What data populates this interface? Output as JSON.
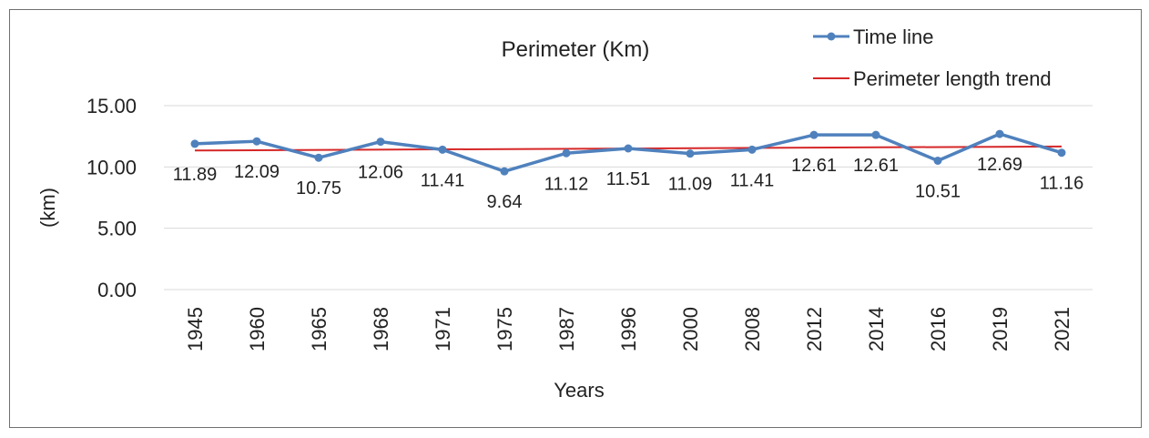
{
  "chart_data": {
    "type": "line",
    "title": "Perimeter (Km)",
    "xlabel": "Years",
    "ylabel": "(km)",
    "categories": [
      "1945",
      "1960",
      "1965",
      "1968",
      "1971",
      "1975",
      "1987",
      "1996",
      "2000",
      "2008",
      "2012",
      "2014",
      "2016",
      "2019",
      "2021"
    ],
    "series": [
      {
        "name": "Time line",
        "color": "#4f81bd",
        "values": [
          11.89,
          12.09,
          10.75,
          12.06,
          11.41,
          9.64,
          11.12,
          11.51,
          11.09,
          11.41,
          12.61,
          12.61,
          10.51,
          12.69,
          11.16
        ],
        "labels": [
          "11.89",
          "12.09",
          "10.75",
          "12.06",
          "11.41",
          "9.64",
          "11.12",
          "11.51",
          "11.09",
          "11.41",
          "12.61",
          "12.61",
          "10.51",
          "12.69",
          "11.16"
        ]
      },
      {
        "name": "Perimeter length trend",
        "color": "#d62728",
        "type": "linear-trend"
      }
    ],
    "ylim": [
      0,
      15
    ],
    "yticks": [
      "0.00",
      "5.00",
      "10.00",
      "15.00"
    ],
    "ytick_values": [
      0,
      5,
      10,
      15
    ],
    "grid": true,
    "legend_position": "top-right"
  }
}
